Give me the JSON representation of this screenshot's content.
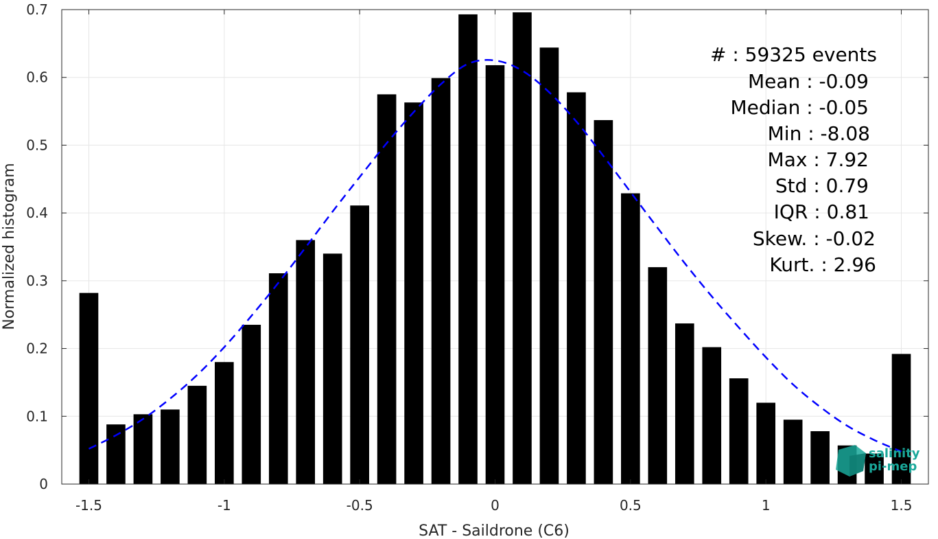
{
  "chart_data": {
    "type": "bar",
    "xlabel": "SAT - Saildrone (C6)",
    "ylabel": "Normalized histogram",
    "xlim": [
      -1.6,
      1.6
    ],
    "ylim": [
      0,
      0.7
    ],
    "xticks": [
      -1.5,
      -1,
      -0.5,
      0,
      0.5,
      1,
      1.5
    ],
    "xtick_labels": [
      "-1.5",
      "-1",
      "-0.5",
      "0",
      "0.5",
      "1",
      "1.5"
    ],
    "yticks": [
      0,
      0.1,
      0.2,
      0.3,
      0.4,
      0.5,
      0.6,
      0.7
    ],
    "ytick_labels": [
      "0",
      "0.1",
      "0.2",
      "0.3",
      "0.4",
      "0.5",
      "0.6",
      "0.7"
    ],
    "grid": true,
    "bar_color": "#000000",
    "curve_color": "#0000ff",
    "bars": {
      "x": [
        -1.5,
        -1.4,
        -1.3,
        -1.2,
        -1.1,
        -1.0,
        -0.9,
        -0.8,
        -0.7,
        -0.6,
        -0.5,
        -0.4,
        -0.3,
        -0.2,
        -0.1,
        0.0,
        0.1,
        0.2,
        0.3,
        0.4,
        0.5,
        0.6,
        0.7,
        0.8,
        0.9,
        1.0,
        1.1,
        1.2,
        1.3,
        1.4,
        1.5
      ],
      "values": [
        0.282,
        0.088,
        0.103,
        0.11,
        0.145,
        0.18,
        0.235,
        0.311,
        0.36,
        0.34,
        0.411,
        0.575,
        0.563,
        0.599,
        0.693,
        0.618,
        0.696,
        0.644,
        0.578,
        0.537,
        0.429,
        0.32,
        0.237,
        0.202,
        0.156,
        0.12,
        0.095,
        0.078,
        0.057,
        0.045,
        0.192
      ]
    },
    "fit_curve": {
      "style": "dashed",
      "x": [
        -1.5,
        -1.4,
        -1.3,
        -1.2,
        -1.1,
        -1.0,
        -0.9,
        -0.8,
        -0.7,
        -0.6,
        -0.5,
        -0.4,
        -0.3,
        -0.2,
        -0.1,
        0.0,
        0.1,
        0.2,
        0.3,
        0.4,
        0.5,
        0.6,
        0.7,
        0.8,
        0.9,
        1.0,
        1.1,
        1.2,
        1.3,
        1.4,
        1.5
      ],
      "y": [
        0.052,
        0.072,
        0.096,
        0.126,
        0.161,
        0.202,
        0.248,
        0.297,
        0.349,
        0.402,
        0.453,
        0.503,
        0.549,
        0.59,
        0.62,
        0.625,
        0.61,
        0.578,
        0.535,
        0.484,
        0.431,
        0.378,
        0.326,
        0.277,
        0.231,
        0.187,
        0.147,
        0.114,
        0.086,
        0.065,
        0.048
      ]
    }
  },
  "stats": [
    "#  : 59325 events",
    "Mean : -0.09",
    "Median : -0.05",
    "Min : -8.08",
    "Max : 7.92",
    "Std : 0.79",
    "IQR : 0.81",
    "Skew. : -0.02",
    "Kurt. : 2.96"
  ],
  "logo": {
    "line1": "salinity",
    "line2": "pi-mep",
    "color": "#1aa89a"
  }
}
